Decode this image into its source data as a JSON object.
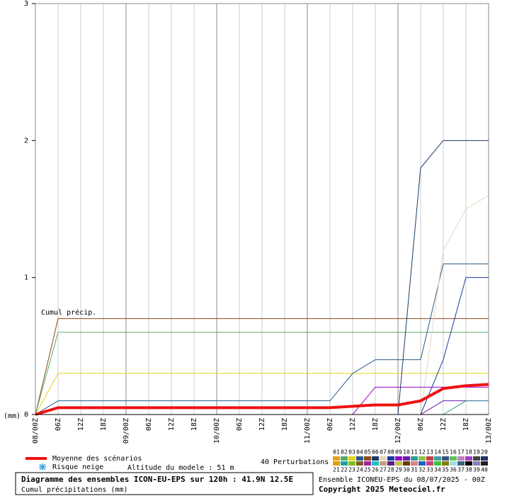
{
  "chart_data": {
    "type": "line",
    "title": "Diagramme des ensembles ICON-EU-EPS sur 120h : 41.9N 12.5E",
    "subtitle": "Cumul précipitations (mm)",
    "y_label": "(mm)",
    "annotation": "Cumul précip.",
    "categories": [
      "08/00Z",
      "06Z",
      "12Z",
      "18Z",
      "09/00Z",
      "06Z",
      "12Z",
      "18Z",
      "10/00Z",
      "06Z",
      "12Z",
      "18Z",
      "11/00Z",
      "06Z",
      "12Z",
      "18Z",
      "12/00Z",
      "06Z",
      "12Z",
      "18Z",
      "13/00Z"
    ],
    "ylim": [
      0,
      3
    ],
    "yticks": [
      0,
      1,
      2,
      3
    ],
    "grid": "vertical",
    "series": [
      {
        "color": "#8b4a1a",
        "values": [
          0,
          0.7,
          0.7,
          0.7,
          0.7,
          0.7,
          0.7,
          0.7,
          0.7,
          0.7,
          0.7,
          0.7,
          0.7,
          0.7,
          0.7,
          0.7,
          0.7,
          0.7,
          0.7,
          0.7,
          0.7
        ]
      },
      {
        "color": "#5aa86a",
        "values": [
          0,
          0.6,
          0.6,
          0.6,
          0.6,
          0.6,
          0.6,
          0.6,
          0.6,
          0.6,
          0.6,
          0.6,
          0.6,
          0.6,
          0.6,
          0.6,
          0.6,
          0.6,
          0.6,
          0.6,
          0.6
        ]
      },
      {
        "color": "#e6d21a",
        "values": [
          0,
          0.3,
          0.3,
          0.3,
          0.3,
          0.3,
          0.3,
          0.3,
          0.3,
          0.3,
          0.3,
          0.3,
          0.3,
          0.3,
          0.3,
          0.3,
          0.3,
          0.3,
          0.3,
          0.3,
          0.3
        ]
      },
      {
        "color": "#2a5a8a",
        "values": [
          0,
          0.1,
          0.1,
          0.1,
          0.1,
          0.1,
          0.1,
          0.1,
          0.1,
          0.1,
          0.1,
          0.1,
          0.1,
          0.1,
          0.3,
          0.4,
          0.4,
          0.4,
          1.1,
          1.1,
          1.1
        ]
      },
      {
        "color": "#1a3a6a",
        "values": [
          0,
          0,
          0,
          0,
          0,
          0,
          0,
          0,
          0,
          0,
          0,
          0,
          0,
          0,
          0,
          0,
          0,
          1.8,
          2,
          2,
          2
        ]
      },
      {
        "color": "#e8d8b8",
        "values": [
          0,
          0,
          0,
          0,
          0,
          0,
          0,
          0,
          0,
          0,
          0,
          0,
          0,
          0,
          0,
          0,
          0,
          0,
          1.2,
          1.5,
          1.6
        ]
      },
      {
        "color": "#1a3aa0",
        "values": [
          0,
          0,
          0,
          0,
          0,
          0,
          0,
          0,
          0,
          0,
          0,
          0,
          0,
          0,
          0,
          0,
          0,
          0,
          0.4,
          1,
          1
        ]
      },
      {
        "color": "#9900cc",
        "values": [
          0,
          0,
          0,
          0,
          0,
          0,
          0,
          0,
          0,
          0,
          0,
          0,
          0,
          0,
          0,
          0.2,
          0.2,
          0.2,
          0.2,
          0.2,
          0.2
        ]
      },
      {
        "color": "#6a1aaa",
        "values": [
          0,
          0,
          0,
          0,
          0,
          0,
          0,
          0,
          0,
          0,
          0,
          0,
          0,
          0,
          0,
          0,
          0,
          0,
          0.1,
          0.1,
          0.1
        ]
      },
      {
        "color": "#339999",
        "values": [
          0,
          0,
          0,
          0,
          0,
          0,
          0,
          0,
          0,
          0,
          0,
          0,
          0,
          0,
          0,
          0,
          0,
          0,
          0,
          0.1,
          0.1
        ]
      },
      {
        "name": "Moyenne des scénarios",
        "color": "#ee1111",
        "mean": true,
        "values": [
          0,
          0.05,
          0.05,
          0.05,
          0.05,
          0.05,
          0.05,
          0.05,
          0.05,
          0.05,
          0.05,
          0.05,
          0.05,
          0.05,
          0.06,
          0.07,
          0.07,
          0.1,
          0.19,
          0.21,
          0.22
        ]
      }
    ],
    "snow_label": "Risque neige",
    "altitude": "Altitude du modele : 51 m",
    "perturbations_label": "40 Perturbations",
    "perturbations": {
      "labels": [
        "01",
        "02",
        "03",
        "04",
        "05",
        "06",
        "07",
        "08",
        "09",
        "10",
        "11",
        "12",
        "13",
        "14",
        "15",
        "16",
        "17",
        "18",
        "19",
        "20",
        "21",
        "22",
        "23",
        "24",
        "25",
        "26",
        "27",
        "28",
        "29",
        "30",
        "31",
        "32",
        "33",
        "34",
        "35",
        "36",
        "37",
        "38",
        "39",
        "40"
      ],
      "colors": [
        "#e6a020",
        "#5aa86a",
        "#e6d21a",
        "#2a5a8a",
        "#8b4a1a",
        "#1a3a6a",
        "#e8d8b8",
        "#1a3aa0",
        "#9900cc",
        "#6a1aaa",
        "#339999",
        "#8bc34a",
        "#c04040",
        "#40a0a0",
        "#405080",
        "#60c060",
        "#c080c0",
        "#a040c0",
        "#404040",
        "#203060",
        "#e0a000",
        "#20a0a0",
        "#80c020",
        "#806020",
        "#a020a0",
        "#20c0c0",
        "#c0a080",
        "#602080",
        "#c0c040",
        "#604000",
        "#e08080",
        "#2060c0",
        "#c04080",
        "#40c040",
        "#808000",
        "#a0e0e0",
        "#406080",
        "#000000",
        "#8080c0",
        "#202020"
      ]
    },
    "run_info": "Ensemble ICONEU-EPS du 08/07/2025 - 00Z",
    "copyright": "Copyright 2025 Meteociel.fr"
  }
}
